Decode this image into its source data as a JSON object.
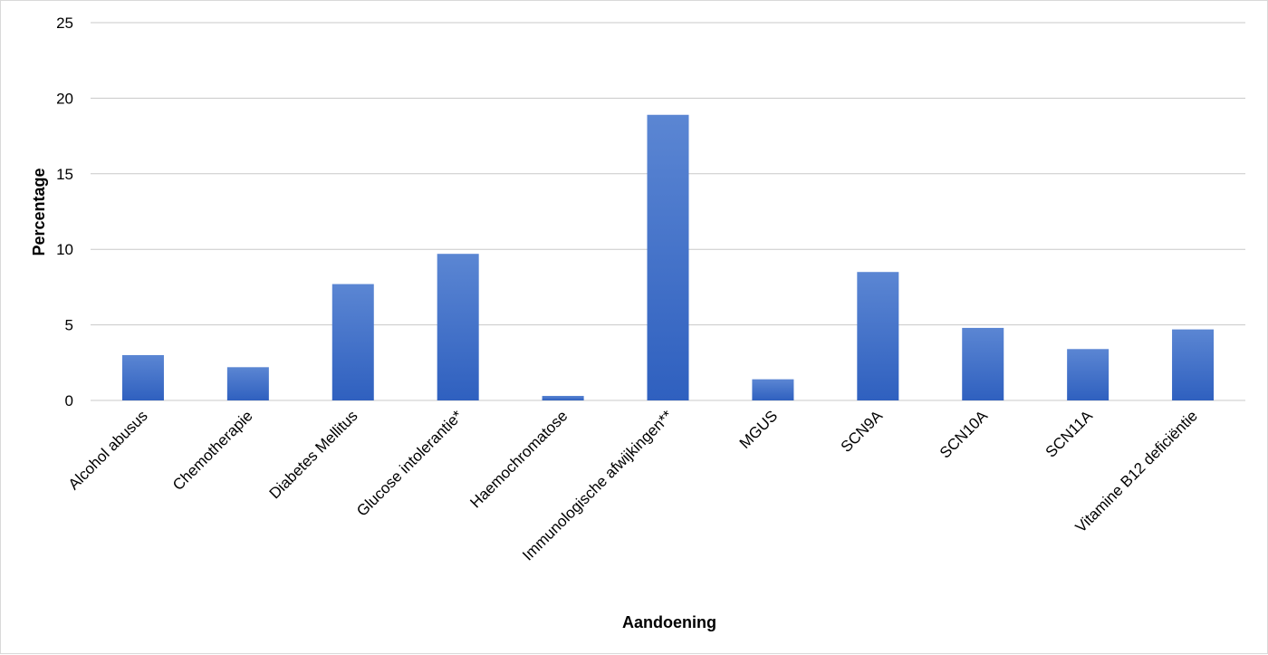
{
  "chart_data": {
    "type": "bar",
    "title": "",
    "xlabel": "Aandoening",
    "ylabel": "Percentage",
    "ylim": [
      0,
      25
    ],
    "yticks": [
      0,
      5,
      10,
      15,
      20,
      25
    ],
    "grid": true,
    "legend": "none",
    "bar_color": "#3a6bc9",
    "categories": [
      "Alcohol abusus",
      "Chemotherapie",
      "Diabetes Mellitus",
      "Glucose intolerantie*",
      "Haemochromatose",
      "Immunologische afwijkingen**",
      "MGUS",
      "SCN9A",
      "SCN10A",
      "SCN11A",
      "Vitamine B12 deficiëntie"
    ],
    "values": [
      3.0,
      2.2,
      7.7,
      9.7,
      0.3,
      18.9,
      1.4,
      8.5,
      4.8,
      3.4,
      4.7
    ]
  }
}
